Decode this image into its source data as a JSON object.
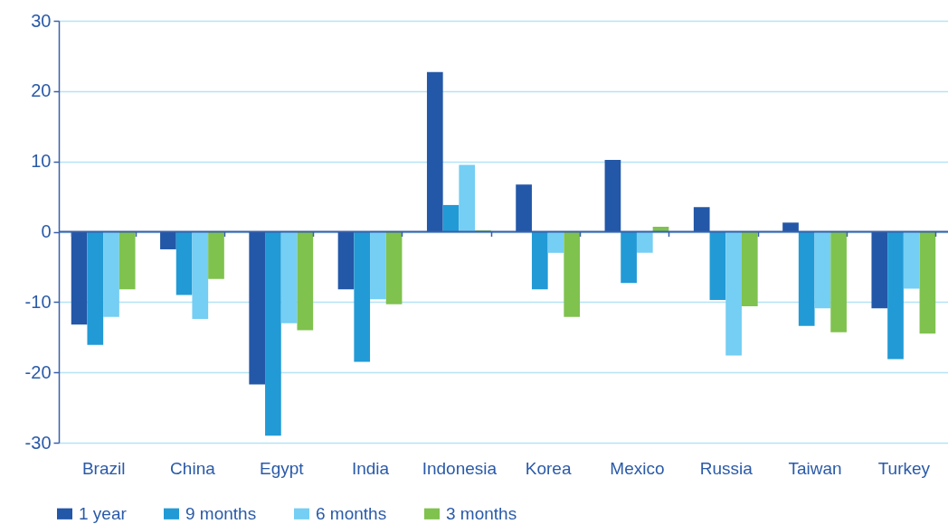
{
  "chart_data": {
    "type": "bar",
    "categories": [
      "Brazil",
      "China",
      "Egypt",
      "India",
      "Indonesia",
      "Korea",
      "Mexico",
      "Russia",
      "Taiwan",
      "Turkey"
    ],
    "series": [
      {
        "name": "1 year",
        "color": "#2357a7",
        "values": [
          -13.2,
          -2.5,
          -21.7,
          -8.2,
          22.7,
          6.7,
          10.2,
          3.5,
          1.3,
          -10.9
        ]
      },
      {
        "name": "9 months",
        "color": "#229ad6",
        "values": [
          -16.1,
          -9.0,
          -29.0,
          -18.5,
          3.8,
          -8.2,
          -7.3,
          -9.7,
          -13.4,
          -18.1
        ]
      },
      {
        "name": "6 months",
        "color": "#75cef3",
        "values": [
          -12.1,
          -12.4,
          -13.0,
          -9.6,
          9.5,
          -3.0,
          -3.0,
          -17.6,
          -10.9,
          -8.1
        ]
      },
      {
        "name": "3 months",
        "color": "#7fc24e",
        "values": [
          -8.2,
          -6.7,
          -14.0,
          -10.3,
          0.2,
          -12.1,
          0.7,
          -10.6,
          -14.3,
          -14.5
        ]
      }
    ],
    "ylim": [
      -30,
      30
    ],
    "yticks": [
      -30,
      -20,
      -10,
      0,
      10,
      20,
      30
    ],
    "ref_lines": [
      {
        "axis": "y",
        "value": 0,
        "color": "#3a5fa8"
      }
    ],
    "grid": "y",
    "legend": "bottom"
  }
}
